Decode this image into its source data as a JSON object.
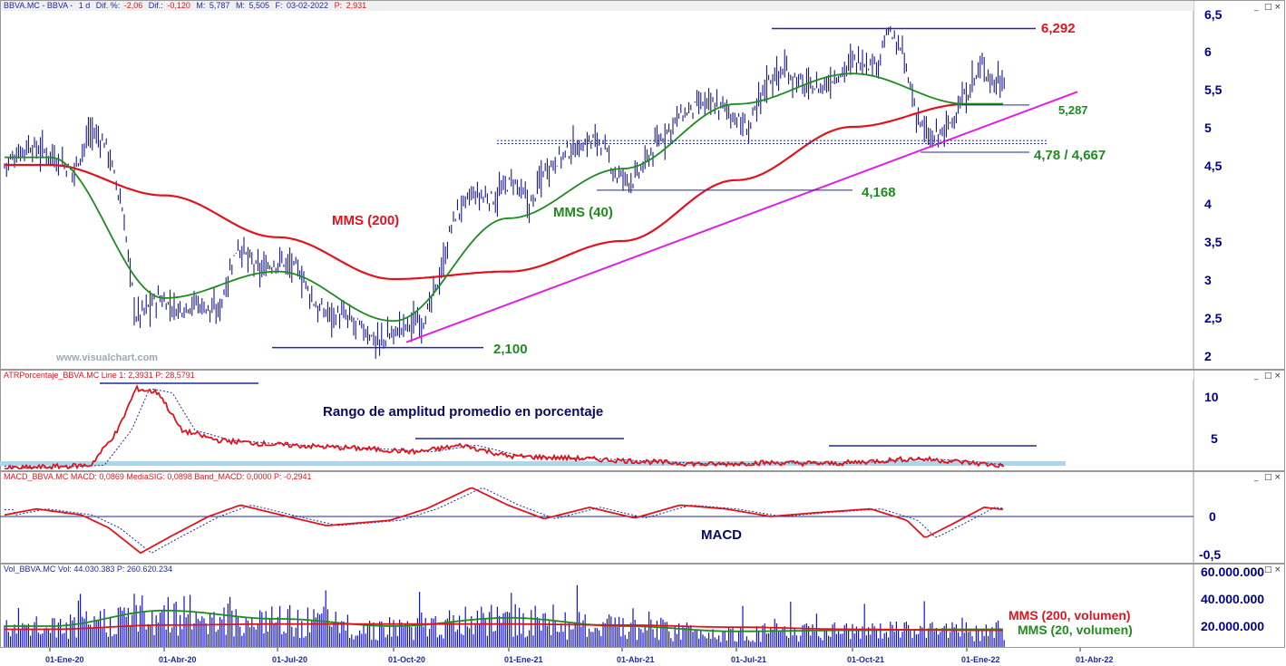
{
  "colors": {
    "price": "#00008b",
    "mms200": "#e0141e",
    "mms40": "#1e8c1e",
    "trend": "#e020e0",
    "level": "#1e2aa0",
    "header_red": "#e0141e",
    "header_blue": "#1e2aa0",
    "atr_band": "#a8d8f0",
    "macd_sig": "#1e2aa0",
    "volume": "#1010d0"
  },
  "price_panel": {
    "header": {
      "symbol": "BBVA.MC - BBVA -",
      "period": "1 d",
      "dif_pct_label": "Dif. %:",
      "dif_pct": "-2,06",
      "dif_label": "Dif.:",
      "dif": "-0,120",
      "m_label": "M:",
      "m": "5,787",
      "m2_label": "M:",
      "m2": "5,505",
      "date_label": "F:",
      "date": "03-02-2022",
      "p_label": "P:",
      "p": "2,931"
    },
    "watermark": "www.visualchart.com",
    "labels": {
      "mms200": "MMS (200)",
      "mms40": "MMS (40)",
      "level_6292": "6,292",
      "level_5287": "5,287",
      "level_478": "4,78 / 4,667",
      "level_4168": "4,168",
      "level_2100": "2,100"
    },
    "y_ticks": [
      "6,5",
      "6",
      "5,5",
      "5",
      "4,5",
      "4",
      "3,5",
      "3",
      "2,5",
      "2"
    ]
  },
  "atr_panel": {
    "header": "ATRPorcentaje_BBVA.MC  Line 1: 2,3931  P: 28,5791",
    "title": "Rango de amplitud promedio en porcentaje",
    "y_ticks": [
      "10",
      "5"
    ]
  },
  "macd_panel": {
    "header": "MACD_BBVA.MC  MACD: 0,0869  MediaSIG: 0,0898  Band_MACD: 0,0000  P: -0,2941",
    "title": "MACD",
    "y_ticks": [
      "0",
      "-0,5"
    ]
  },
  "vol_panel": {
    "header": "Vol_BBVA.MC  Vol: 44.030.383  P: 260.620.234",
    "label_mms200": "MMS (200, volumen)",
    "label_mms20": "MMS (20, volumen)",
    "y_ticks": [
      "60.000.000",
      "40.000.000",
      "20.000.000"
    ]
  },
  "x_axis": {
    "ticks": [
      "01-Ene-20",
      "01-Abr-20",
      "01-Jul-20",
      "01-Oct-20",
      "01-Ene-21",
      "01-Abr-21",
      "01-Jul-21",
      "01-Oct-21",
      "01-Ene-22",
      "01-Abr-22"
    ]
  },
  "chart_data": {
    "type": "line",
    "x_dates": [
      "01-Ene-20",
      "01-Abr-20",
      "01-Jul-20",
      "01-Oct-20",
      "01-Ene-21",
      "01-Abr-21",
      "01-Jul-21",
      "01-Oct-21",
      "01-Ene-22"
    ],
    "price_close": [
      4.75,
      2.6,
      3.0,
      2.2,
      4.25,
      4.55,
      5.6,
      6.1,
      5.6
    ],
    "series": [
      {
        "name": "MMS (200)",
        "values": [
          4.5,
          4.1,
          3.55,
          3.0,
          3.1,
          3.5,
          4.3,
          5.0,
          5.3
        ]
      },
      {
        "name": "MMS (40)",
        "values": [
          4.6,
          2.75,
          3.1,
          2.45,
          3.8,
          4.45,
          5.3,
          5.7,
          5.3
        ]
      }
    ],
    "levels": [
      6.292,
      5.287,
      4.78,
      4.667,
      4.168,
      2.1
    ],
    "ylim": [
      1.9,
      6.5
    ],
    "atr_pct": [
      1.5,
      11.0,
      5.0,
      4.0,
      3.0,
      2.8,
      2.5,
      2.9,
      2.4
    ],
    "macd": [
      0.05,
      -0.4,
      0.1,
      -0.08,
      0.45,
      0.05,
      0.1,
      -0.25,
      0.09
    ],
    "volume_mms20": [
      20000000,
      35000000,
      27000000,
      20000000,
      28000000,
      20000000,
      15000000,
      16000000,
      17000000
    ],
    "volume_mms200": [
      17000000,
      21000000,
      22000000,
      22000000,
      22000000,
      21000000,
      19000000,
      17000000,
      16000000
    ]
  }
}
